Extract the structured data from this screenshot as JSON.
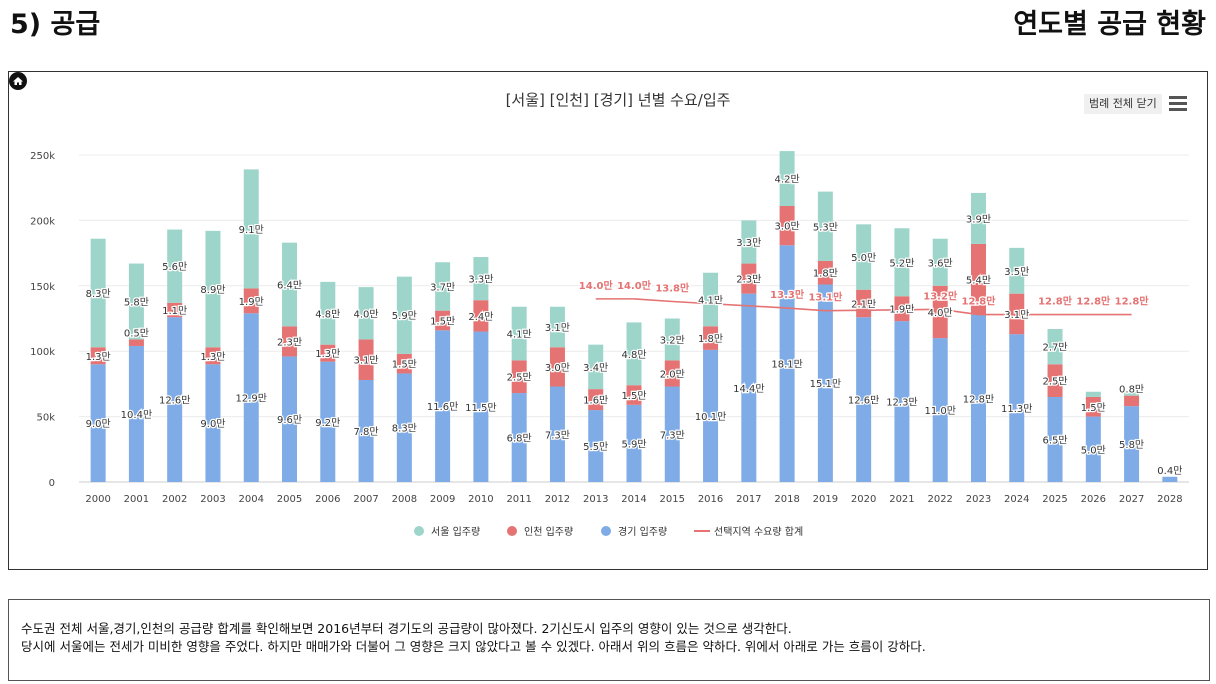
{
  "header": {
    "section_title": "5) 공급",
    "page_heading": "연도별 공급 현황"
  },
  "chart_toolbar": {
    "legend_toggle_label": "범례 전체 닫기"
  },
  "summary": {
    "line1": "수도권 전체 서울,경기,인천의 공급량 합계를 확인해보면 2016년부터 경기도의 공급량이 많아졌다. 2기신도시 입주의 영향이 있는 것으로 생각한다.",
    "line2": "당시에 서울에는 전세가 미비한 영향을 주었다. 하지만 매매가와 더불어 그 영향은 크지 않았다고 볼 수 있겠다. 아래서 위의 흐름은 약하다. 위에서 아래로 가는 흐름이 강하다."
  },
  "colors": {
    "seoul": "#9ed5cb",
    "incheon": "#e57373",
    "gyeonggi": "#7fabe6",
    "demand_line": "#e57373"
  },
  "chart_data": {
    "type": "bar",
    "stacked": true,
    "title": "[서울] [인천] [경기] 년별 수요/입주",
    "categories": [
      "2000",
      "2001",
      "2002",
      "2003",
      "2004",
      "2005",
      "2006",
      "2007",
      "2008",
      "2009",
      "2010",
      "2011",
      "2012",
      "2013",
      "2014",
      "2015",
      "2016",
      "2017",
      "2018",
      "2019",
      "2020",
      "2021",
      "2022",
      "2023",
      "2024",
      "2025",
      "2026",
      "2027",
      "2028"
    ],
    "ylim": [
      0,
      250000
    ],
    "y_ticks": [
      0,
      50000,
      100000,
      150000,
      200000,
      250000
    ],
    "y_tick_labels": [
      "0",
      "50k",
      "100k",
      "150k",
      "200k",
      "250k"
    ],
    "grid": true,
    "legend_position": "bottom",
    "series": [
      {
        "name": "경기 입주량",
        "values": [
          90000,
          104000,
          126000,
          90000,
          129000,
          96000,
          92000,
          78000,
          83000,
          116000,
          115000,
          68000,
          73000,
          55000,
          59000,
          73000,
          101000,
          144000,
          181000,
          151000,
          126000,
          123000,
          110000,
          128000,
          113000,
          65000,
          50000,
          58000,
          4000
        ],
        "labels": [
          "9.0만",
          "10.4만",
          "12.6만",
          "9.0만",
          "12.9만",
          "9.6만",
          "9.2만",
          "7.8만",
          "8.3만",
          "11.6만",
          "11.5만",
          "6.8만",
          "7.3만",
          "5.5만",
          "5.9만",
          "7.3만",
          "10.1만",
          "14.4만",
          "18.1만",
          "15.1만",
          "12.6만",
          "12.3만",
          "11.0만",
          "12.8만",
          "11.3만",
          "6.5만",
          "5.0만",
          "5.8만",
          "0.4만"
        ]
      },
      {
        "name": "인천 입주량",
        "values": [
          13000,
          5000,
          11000,
          13000,
          19000,
          23000,
          13000,
          31000,
          15000,
          15000,
          24000,
          25000,
          30000,
          16000,
          15000,
          20000,
          18000,
          23000,
          30000,
          18000,
          21000,
          19000,
          40000,
          54000,
          31000,
          25000,
          15000,
          8000,
          0
        ],
        "labels": [
          "1.3만",
          "0.5만",
          "1.1만",
          "1.3만",
          "1.9만",
          "2.3만",
          "1.3만",
          "3.1만",
          "1.5만",
          "1.5만",
          "2.4만",
          "2.5만",
          "3.0만",
          "1.6만",
          "1.5만",
          "2.0만",
          "1.8만",
          "2.3만",
          "3.0만",
          "1.8만",
          "2.1만",
          "1.9만",
          "4.0만",
          "5.4만",
          "3.1만",
          "2.5만",
          "1.5만",
          "0.8만",
          ""
        ]
      },
      {
        "name": "서울 입주량",
        "values": [
          83000,
          58000,
          56000,
          89000,
          91000,
          64000,
          48000,
          40000,
          59000,
          37000,
          33000,
          41000,
          31000,
          34000,
          48000,
          32000,
          41000,
          33000,
          42000,
          53000,
          50000,
          52000,
          36000,
          39000,
          35000,
          27000,
          4000,
          3000,
          0
        ],
        "labels": [
          "8.3만",
          "5.8만",
          "5.6만",
          "8.9만",
          "9.1만",
          "6.4만",
          "4.8만",
          "4.0만",
          "5.9만",
          "3.7만",
          "3.3만",
          "4.1만",
          "3.1만",
          "3.4만",
          "4.8만",
          "3.2만",
          "4.1만",
          "3.3만",
          "4.2만",
          "5.3만",
          "5.0만",
          "5.2만",
          "3.6만",
          "3.9만",
          "3.5만",
          "2.7만",
          "",
          "",
          ""
        ]
      },
      {
        "name": "선택지역 수요량 합계",
        "type": "line",
        "values": [
          null,
          null,
          null,
          null,
          null,
          null,
          null,
          null,
          null,
          null,
          null,
          null,
          null,
          140000,
          140000,
          138000,
          null,
          null,
          133000,
          131000,
          null,
          null,
          132000,
          128000,
          null,
          128000,
          128000,
          128000,
          null
        ],
        "labels": [
          "",
          "",
          "",
          "",
          "",
          "",
          "",
          "",
          "",
          "",
          "",
          "",
          "",
          "14.0만",
          "14.0만",
          "13.8만",
          "",
          "",
          "13.3만",
          "13.1만",
          "",
          "",
          "13.2만",
          "12.8만",
          "",
          "12.8만",
          "12.8만",
          "12.8만",
          ""
        ]
      }
    ]
  }
}
